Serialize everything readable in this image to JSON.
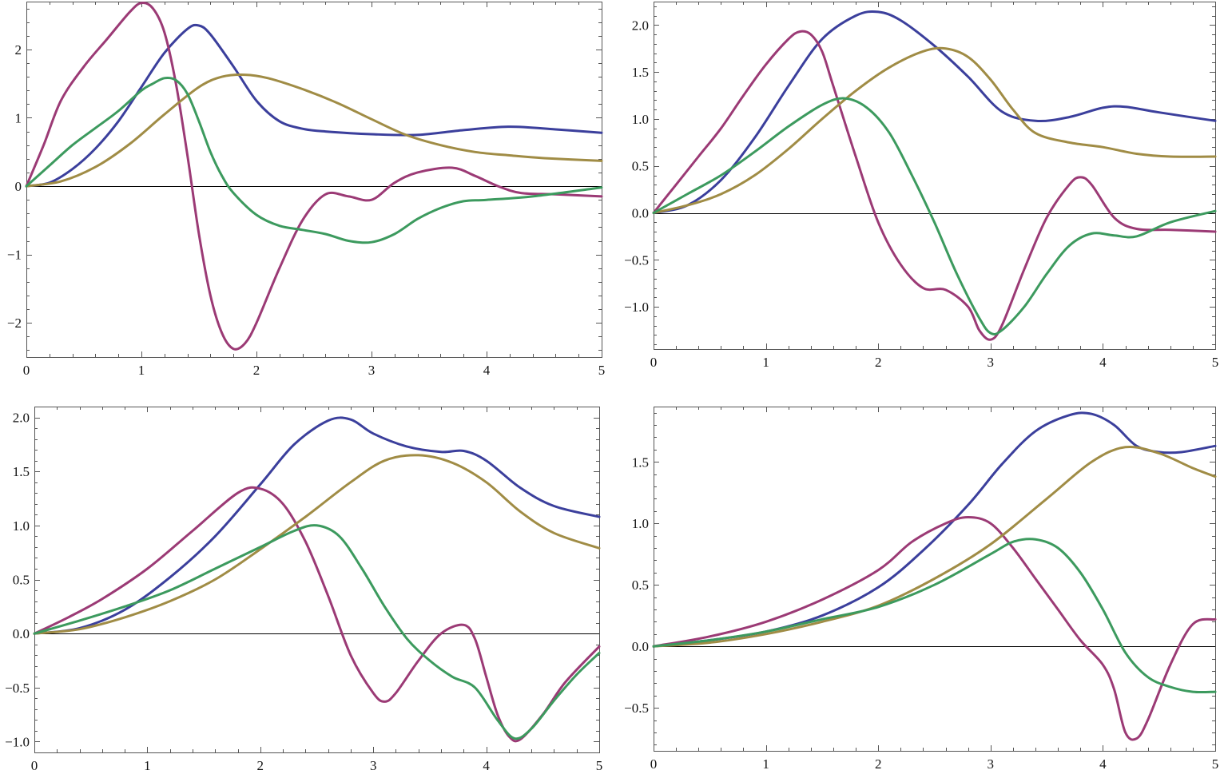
{
  "colors": {
    "blue": "#3b3f9c",
    "magenta": "#9b3a75",
    "olive": "#a08c45",
    "green": "#3c9a5e",
    "frame": "#555555"
  },
  "chart_data": [
    {
      "type": "line",
      "xlim": [
        0,
        5
      ],
      "ylim": [
        -2.5,
        2.7
      ],
      "xticks": [
        0,
        1,
        2,
        3,
        4,
        5
      ],
      "xtick_labels": [
        "0",
        "1",
        "2",
        "3",
        "4",
        "5"
      ],
      "yticks": [
        -2,
        -1,
        0,
        1,
        2
      ],
      "ytick_labels": [
        "−2",
        "−1",
        "0",
        "1",
        "2"
      ],
      "series": [
        {
          "name": "blue",
          "color": "blue",
          "x": [
            0,
            0.2,
            0.4,
            0.6,
            0.8,
            1.0,
            1.2,
            1.4,
            1.5,
            1.6,
            1.8,
            2.0,
            2.2,
            2.4,
            2.6,
            3.0,
            3.4,
            3.8,
            4.2,
            4.6,
            5.0
          ],
          "y": [
            0,
            0.05,
            0.25,
            0.55,
            0.95,
            1.45,
            1.95,
            2.3,
            2.35,
            2.22,
            1.75,
            1.25,
            0.95,
            0.84,
            0.8,
            0.76,
            0.75,
            0.82,
            0.87,
            0.83,
            0.78
          ]
        },
        {
          "name": "magenta",
          "color": "magenta",
          "x": [
            0,
            0.15,
            0.3,
            0.5,
            0.7,
            0.9,
            1.0,
            1.1,
            1.2,
            1.3,
            1.4,
            1.5,
            1.6,
            1.7,
            1.8,
            1.9,
            2.0,
            2.2,
            2.4,
            2.6,
            2.8,
            3.0,
            3.2,
            3.4,
            3.7,
            3.9,
            4.1,
            4.3,
            4.6,
            5.0
          ],
          "y": [
            0,
            0.6,
            1.25,
            1.75,
            2.15,
            2.55,
            2.68,
            2.6,
            2.25,
            1.5,
            0.45,
            -0.7,
            -1.6,
            -2.15,
            -2.38,
            -2.3,
            -2.0,
            -1.2,
            -0.5,
            -0.12,
            -0.15,
            -0.2,
            0.05,
            0.2,
            0.27,
            0.15,
            0.0,
            -0.1,
            -0.12,
            -0.15
          ]
        },
        {
          "name": "olive",
          "color": "olive",
          "x": [
            0,
            0.3,
            0.6,
            0.9,
            1.2,
            1.5,
            1.7,
            1.9,
            2.1,
            2.4,
            2.7,
            3.0,
            3.3,
            3.6,
            3.9,
            4.2,
            4.5,
            5.0
          ],
          "y": [
            0,
            0.07,
            0.28,
            0.62,
            1.05,
            1.45,
            1.6,
            1.63,
            1.58,
            1.42,
            1.22,
            0.98,
            0.75,
            0.6,
            0.5,
            0.45,
            0.41,
            0.37
          ]
        },
        {
          "name": "green",
          "color": "green",
          "x": [
            0,
            0.2,
            0.4,
            0.6,
            0.8,
            1.0,
            1.1,
            1.2,
            1.3,
            1.4,
            1.5,
            1.6,
            1.7,
            1.8,
            2.0,
            2.2,
            2.4,
            2.6,
            2.8,
            3.0,
            3.2,
            3.4,
            3.6,
            3.8,
            4.0,
            4.4,
            5.0
          ],
          "y": [
            0,
            0.3,
            0.6,
            0.85,
            1.1,
            1.4,
            1.5,
            1.58,
            1.55,
            1.35,
            0.95,
            0.5,
            0.15,
            -0.1,
            -0.42,
            -0.58,
            -0.64,
            -0.7,
            -0.8,
            -0.82,
            -0.7,
            -0.48,
            -0.32,
            -0.22,
            -0.2,
            -0.15,
            -0.02
          ]
        }
      ]
    },
    {
      "type": "line",
      "xlim": [
        0,
        5
      ],
      "ylim": [
        -1.45,
        2.25
      ],
      "xticks": [
        0,
        1,
        2,
        3,
        4,
        5
      ],
      "xtick_labels": [
        "0",
        "1",
        "2",
        "3",
        "4",
        "5"
      ],
      "yticks": [
        -1.0,
        -0.5,
        0.0,
        0.5,
        1.0,
        1.5,
        2.0
      ],
      "ytick_labels": [
        "−1.0",
        "−0.5",
        "0.0",
        "0.5",
        "1.0",
        "1.5",
        "2.0"
      ],
      "series": [
        {
          "name": "blue",
          "color": "blue",
          "x": [
            0,
            0.3,
            0.6,
            0.9,
            1.2,
            1.5,
            1.8,
            2.0,
            2.2,
            2.5,
            2.8,
            3.1,
            3.4,
            3.7,
            4.0,
            4.2,
            4.5,
            5.0
          ],
          "y": [
            0,
            0.08,
            0.35,
            0.8,
            1.35,
            1.85,
            2.1,
            2.14,
            2.05,
            1.78,
            1.45,
            1.08,
            0.98,
            1.02,
            1.12,
            1.13,
            1.07,
            0.98
          ]
        },
        {
          "name": "magenta",
          "color": "magenta",
          "x": [
            0,
            0.2,
            0.4,
            0.6,
            0.8,
            1.0,
            1.2,
            1.3,
            1.4,
            1.5,
            1.6,
            1.8,
            2.0,
            2.2,
            2.4,
            2.6,
            2.8,
            2.9,
            3.0,
            3.1,
            3.3,
            3.5,
            3.7,
            3.8,
            3.9,
            4.1,
            4.3,
            4.6,
            5.0
          ],
          "y": [
            0,
            0.3,
            0.6,
            0.9,
            1.25,
            1.58,
            1.85,
            1.93,
            1.9,
            1.72,
            1.35,
            0.6,
            -0.1,
            -0.55,
            -0.8,
            -0.82,
            -1.0,
            -1.25,
            -1.35,
            -1.2,
            -0.6,
            -0.05,
            0.3,
            0.38,
            0.3,
            -0.05,
            -0.17,
            -0.18,
            -0.2
          ]
        },
        {
          "name": "olive",
          "color": "olive",
          "x": [
            0,
            0.3,
            0.6,
            0.9,
            1.2,
            1.5,
            1.8,
            2.1,
            2.4,
            2.6,
            2.8,
            3.0,
            3.2,
            3.4,
            3.7,
            4.0,
            4.3,
            4.6,
            5.0
          ],
          "y": [
            0,
            0.08,
            0.2,
            0.4,
            0.68,
            1.0,
            1.3,
            1.55,
            1.72,
            1.75,
            1.66,
            1.42,
            1.1,
            0.85,
            0.75,
            0.7,
            0.63,
            0.6,
            0.6
          ]
        },
        {
          "name": "green",
          "color": "green",
          "x": [
            0,
            0.3,
            0.6,
            0.9,
            1.2,
            1.5,
            1.7,
            1.9,
            2.1,
            2.3,
            2.5,
            2.7,
            2.9,
            3.0,
            3.1,
            3.3,
            3.5,
            3.7,
            3.9,
            4.1,
            4.3,
            4.6,
            5.0
          ],
          "y": [
            0,
            0.2,
            0.4,
            0.65,
            0.92,
            1.15,
            1.22,
            1.12,
            0.85,
            0.4,
            -0.1,
            -0.65,
            -1.12,
            -1.28,
            -1.25,
            -1.0,
            -0.65,
            -0.35,
            -0.22,
            -0.24,
            -0.25,
            -0.1,
            0.02
          ]
        }
      ]
    },
    {
      "type": "line",
      "xlim": [
        0,
        5
      ],
      "ylim": [
        -1.1,
        2.1
      ],
      "xticks": [
        0,
        1,
        2,
        3,
        4,
        5
      ],
      "xtick_labels": [
        "0",
        "1",
        "2",
        "3",
        "4",
        "5"
      ],
      "yticks": [
        -1.0,
        -0.5,
        0.0,
        0.5,
        1.0,
        1.5,
        2.0
      ],
      "ytick_labels": [
        "−1.0",
        "−0.5",
        "0.0",
        "0.5",
        "1.0",
        "1.5",
        "2.0"
      ],
      "series": [
        {
          "name": "blue",
          "color": "blue",
          "x": [
            0,
            0.4,
            0.8,
            1.2,
            1.6,
            2.0,
            2.3,
            2.6,
            2.8,
            3.0,
            3.3,
            3.6,
            3.8,
            4.0,
            4.3,
            4.6,
            5.0
          ],
          "y": [
            0,
            0.05,
            0.22,
            0.52,
            0.9,
            1.38,
            1.75,
            1.97,
            1.98,
            1.85,
            1.73,
            1.68,
            1.69,
            1.6,
            1.35,
            1.18,
            1.08
          ]
        },
        {
          "name": "magenta",
          "color": "magenta",
          "x": [
            0,
            0.3,
            0.6,
            1.0,
            1.4,
            1.8,
            2.0,
            2.2,
            2.4,
            2.6,
            2.8,
            3.0,
            3.1,
            3.2,
            3.4,
            3.6,
            3.8,
            3.9,
            4.0,
            4.1,
            4.2,
            4.3,
            4.5,
            4.7,
            5.0
          ],
          "y": [
            0,
            0.15,
            0.32,
            0.6,
            0.95,
            1.3,
            1.34,
            1.2,
            0.85,
            0.35,
            -0.2,
            -0.55,
            -0.63,
            -0.55,
            -0.25,
            0.0,
            0.08,
            -0.05,
            -0.4,
            -0.75,
            -0.95,
            -0.98,
            -0.75,
            -0.45,
            -0.12
          ]
        },
        {
          "name": "olive",
          "color": "olive",
          "x": [
            0,
            0.4,
            0.8,
            1.2,
            1.6,
            2.0,
            2.4,
            2.8,
            3.1,
            3.4,
            3.7,
            4.0,
            4.3,
            4.6,
            5.0
          ],
          "y": [
            0,
            0.04,
            0.15,
            0.3,
            0.5,
            0.78,
            1.08,
            1.4,
            1.6,
            1.65,
            1.58,
            1.4,
            1.13,
            0.93,
            0.79
          ]
        },
        {
          "name": "green",
          "color": "green",
          "x": [
            0,
            0.4,
            0.8,
            1.2,
            1.6,
            2.0,
            2.3,
            2.5,
            2.7,
            2.9,
            3.1,
            3.3,
            3.5,
            3.7,
            3.9,
            4.1,
            4.25,
            4.4,
            4.6,
            4.8,
            5.0
          ],
          "y": [
            0,
            0.12,
            0.25,
            0.4,
            0.6,
            0.8,
            0.95,
            1.0,
            0.9,
            0.6,
            0.25,
            -0.05,
            -0.25,
            -0.4,
            -0.5,
            -0.8,
            -0.97,
            -0.88,
            -0.62,
            -0.38,
            -0.18
          ]
        }
      ]
    },
    {
      "type": "line",
      "xlim": [
        0,
        5
      ],
      "ylim": [
        -0.85,
        1.95
      ],
      "xticks": [
        0,
        1,
        2,
        3,
        4,
        5
      ],
      "xtick_labels": [
        "0",
        "1",
        "2",
        "3",
        "4",
        "5"
      ],
      "yticks": [
        -0.5,
        0.0,
        0.5,
        1.0,
        1.5
      ],
      "ytick_labels": [
        "−0.5",
        "0.0",
        "0.5",
        "1.0",
        "1.5"
      ],
      "series": [
        {
          "name": "blue",
          "color": "blue",
          "x": [
            0,
            0.5,
            1.0,
            1.5,
            2.0,
            2.4,
            2.8,
            3.1,
            3.4,
            3.7,
            3.9,
            4.1,
            4.3,
            4.5,
            4.7,
            5.0
          ],
          "y": [
            0,
            0.05,
            0.12,
            0.25,
            0.48,
            0.78,
            1.15,
            1.48,
            1.75,
            1.88,
            1.89,
            1.8,
            1.63,
            1.58,
            1.58,
            1.63
          ]
        },
        {
          "name": "magenta",
          "color": "magenta",
          "x": [
            0,
            0.5,
            1.0,
            1.5,
            2.0,
            2.3,
            2.6,
            2.8,
            3.0,
            3.2,
            3.4,
            3.6,
            3.8,
            4.0,
            4.1,
            4.2,
            4.3,
            4.4,
            4.6,
            4.8,
            5.0
          ],
          "y": [
            0,
            0.08,
            0.2,
            0.38,
            0.62,
            0.85,
            1.0,
            1.05,
            1.0,
            0.8,
            0.55,
            0.3,
            0.05,
            -0.15,
            -0.35,
            -0.7,
            -0.75,
            -0.6,
            -0.15,
            0.18,
            0.22
          ]
        },
        {
          "name": "olive",
          "color": "olive",
          "x": [
            0,
            0.5,
            1.0,
            1.5,
            2.0,
            2.5,
            3.0,
            3.5,
            3.9,
            4.2,
            4.5,
            4.8,
            5.0
          ],
          "y": [
            0,
            0.03,
            0.1,
            0.2,
            0.33,
            0.55,
            0.83,
            1.2,
            1.5,
            1.62,
            1.57,
            1.45,
            1.38
          ]
        },
        {
          "name": "green",
          "color": "green",
          "x": [
            0,
            0.5,
            1.0,
            1.5,
            2.0,
            2.5,
            3.0,
            3.2,
            3.4,
            3.6,
            3.8,
            4.0,
            4.2,
            4.4,
            4.6,
            4.8,
            5.0
          ],
          "y": [
            0,
            0.05,
            0.12,
            0.22,
            0.32,
            0.5,
            0.75,
            0.85,
            0.87,
            0.8,
            0.6,
            0.3,
            -0.05,
            -0.25,
            -0.33,
            -0.37,
            -0.37
          ]
        }
      ]
    }
  ]
}
